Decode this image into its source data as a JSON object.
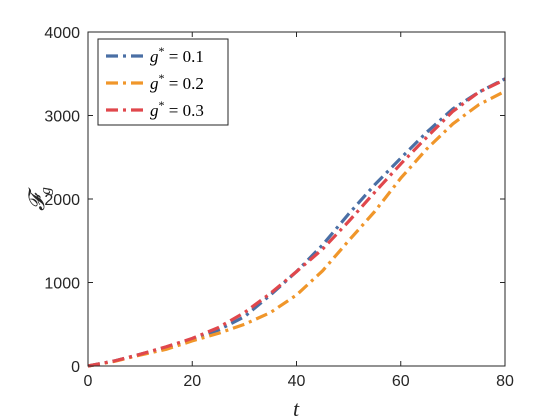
{
  "chart_data": {
    "type": "line",
    "xlabel": "t",
    "ylabel": "𝓕_g",
    "ylabel_main": "𝓕",
    "ylabel_sub": "g",
    "xlim": [
      0,
      80
    ],
    "ylim": [
      0,
      4000
    ],
    "xticks": [
      0,
      20,
      40,
      60,
      80
    ],
    "yticks": [
      0,
      1000,
      2000,
      3000,
      4000
    ],
    "xtick_labels": [
      "0",
      "20",
      "40",
      "60",
      "80"
    ],
    "ytick_labels": [
      "0",
      "1000",
      "2000",
      "3000",
      "4000"
    ],
    "grid": false,
    "legend_position": "top-left",
    "x": [
      0,
      5,
      10,
      15,
      20,
      25,
      30,
      35,
      40,
      45,
      50,
      55,
      60,
      65,
      70,
      75,
      80
    ],
    "series": [
      {
        "name": "g* = 0.1",
        "label_var": "g",
        "label_sup": "*",
        "label_rest": " = 0.1",
        "color": "#4a6fa5",
        "dash": "dashdot",
        "values": [
          0,
          60,
          140,
          220,
          320,
          430,
          590,
          850,
          1130,
          1450,
          1820,
          2170,
          2490,
          2800,
          3080,
          3280,
          3440
        ]
      },
      {
        "name": "g* = 0.2",
        "label_var": "g",
        "label_sup": "*",
        "label_rest": " = 0.2",
        "color": "#f0962a",
        "dash": "dashdot",
        "values": [
          0,
          55,
          130,
          200,
          300,
          390,
          500,
          640,
          850,
          1140,
          1500,
          1850,
          2250,
          2600,
          2900,
          3130,
          3290
        ]
      },
      {
        "name": "g* = 0.3",
        "label_var": "g",
        "label_sup": "*",
        "label_rest": " = 0.3",
        "color": "#e0474c",
        "dash": "dashdot",
        "values": [
          0,
          60,
          140,
          230,
          330,
          460,
          640,
          870,
          1130,
          1400,
          1730,
          2080,
          2420,
          2740,
          3050,
          3280,
          3430
        ]
      }
    ]
  }
}
